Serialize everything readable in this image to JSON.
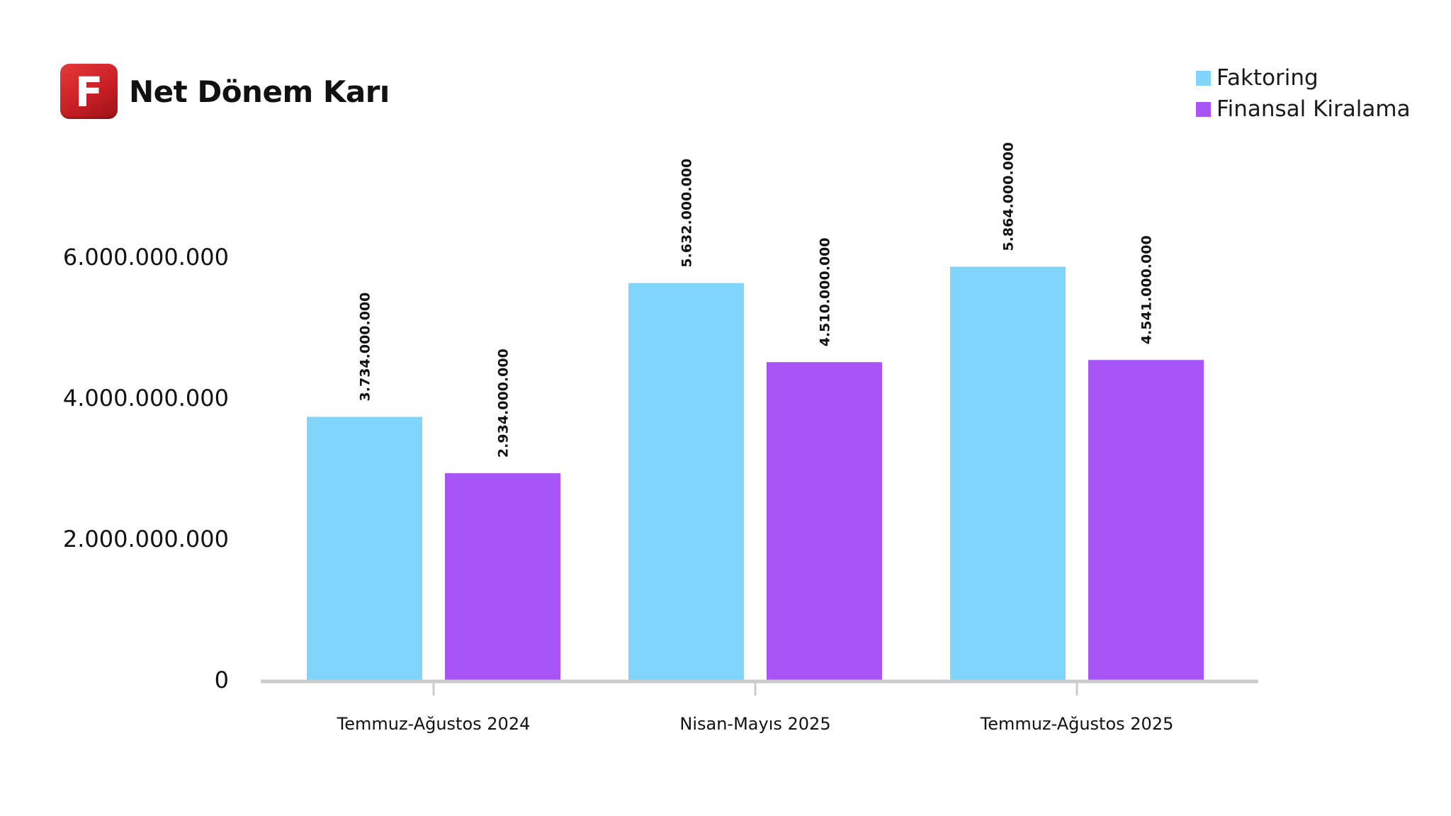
{
  "header": {
    "logo_letter": "F",
    "title": "Net Dönem Karı"
  },
  "colors": {
    "logo": "#d42a2e",
    "faktoring": "#81d4fa",
    "finansal_kiralama": "#a855f7",
    "axis": "#cccccc"
  },
  "legend": [
    {
      "label": "Faktoring",
      "color": "#81d4fa"
    },
    {
      "label": "Finansal Kiralama",
      "color": "#a855f7"
    }
  ],
  "chart_data": {
    "type": "bar",
    "title": "Net Dönem Karı",
    "xlabel": "",
    "ylabel": "",
    "categories": [
      "Temmuz-Ağustos 2024",
      "Nisan-Mayıs 2025",
      "Temmuz-Ağustos 2025"
    ],
    "series": [
      {
        "name": "Faktoring",
        "color": "#81d4fa",
        "values": [
          3734000000,
          5632000000,
          5864000000
        ],
        "labels": [
          "3.734.000.000",
          "5.632.000.000",
          "5.864.000.000"
        ]
      },
      {
        "name": "Finansal Kiralama",
        "color": "#a855f7",
        "values": [
          2934000000,
          4510000000,
          4541000000
        ],
        "labels": [
          "2.934.000.000",
          "4.510.000.000",
          "4.541.000.000"
        ]
      }
    ],
    "yticks": [
      0,
      2000000000,
      4000000000,
      6000000000
    ],
    "ytick_labels": [
      "0",
      "2.000.000.000",
      "4.000.000.000",
      "6.000.000.000"
    ],
    "ylim": [
      0,
      6000000000
    ],
    "grid": false,
    "legend_position": "top-right",
    "data_label_orientation": "vertical"
  }
}
